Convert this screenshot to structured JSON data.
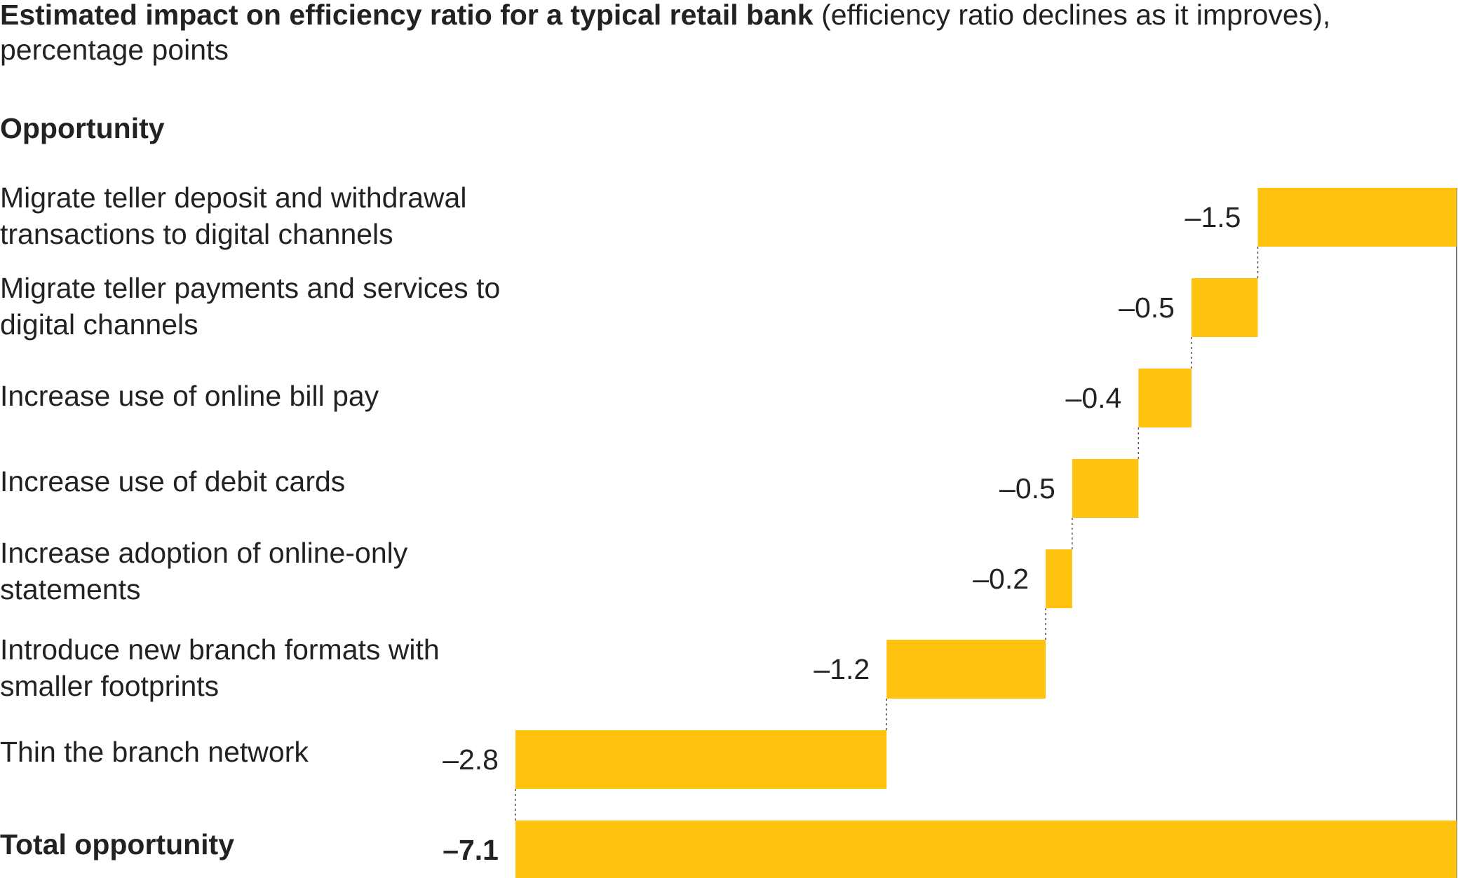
{
  "header": {
    "title_bold": "Estimated impact on efficiency ratio for a typical retail bank",
    "title_rest": " (efficiency ratio declines as it improves), percentage points",
    "section_label": "Opportunity"
  },
  "labels": [
    "Migrate teller deposit and withdrawal transactions to digital channels",
    "Migrate teller payments and services to digital channels",
    "Increase use of online bill pay",
    "Increase use of debit cards",
    "Increase adoption of online-only statements",
    "Introduce new branch formats with smaller footprints",
    "Thin the branch network",
    "Total opportunity"
  ],
  "chart_data": {
    "type": "bar",
    "subtype": "waterfall",
    "title": "Estimated impact on efficiency ratio for a typical retail bank (efficiency ratio declines as it improves), percentage points",
    "categories": [
      "Migrate teller deposit and withdrawal transactions to digital channels",
      "Migrate teller payments and services to digital channels",
      "Increase use of online bill pay",
      "Increase use of debit cards",
      "Increase adoption of online-only statements",
      "Introduce new branch formats with smaller footprints",
      "Thin the branch network",
      "Total opportunity"
    ],
    "values": [
      -1.5,
      -0.5,
      -0.4,
      -0.5,
      -0.2,
      -1.2,
      -2.8,
      -7.1
    ],
    "value_labels": [
      "–1.5",
      "–0.5",
      "–0.4",
      "–0.5",
      "–0.2",
      "–1.2",
      "–2.8",
      "–7.1"
    ],
    "total_index": 7,
    "xlim": [
      -7.1,
      0
    ],
    "bar_color": "#FFC20E",
    "connector_color": "#555555",
    "axis_color": "#777777",
    "xlabel": "",
    "ylabel": "Opportunity"
  }
}
